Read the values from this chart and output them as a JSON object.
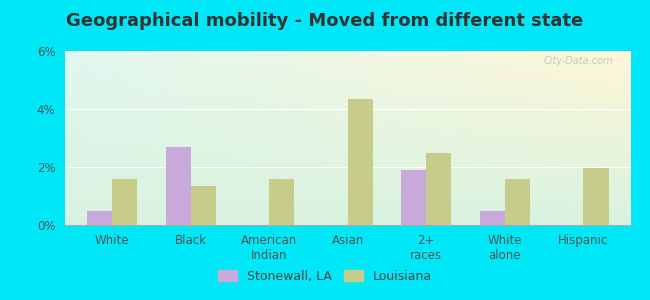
{
  "title": "Geographical mobility - Moved from different state",
  "categories": [
    "White",
    "Black",
    "American\nIndian",
    "Asian",
    "2+\nraces",
    "White\nalone",
    "Hispanic"
  ],
  "stonewall_values": [
    0.5,
    2.7,
    0.0,
    0.0,
    1.9,
    0.5,
    0.0
  ],
  "louisiana_values": [
    1.6,
    1.35,
    1.6,
    4.35,
    2.5,
    1.6,
    1.95
  ],
  "stonewall_color": "#c9a8dc",
  "louisiana_color": "#c8cc8a",
  "ylim": [
    0,
    6
  ],
  "yticks": [
    0,
    2,
    4,
    6
  ],
  "ytick_labels": [
    "0%",
    "2%",
    "4%",
    "6%"
  ],
  "bar_width": 0.32,
  "grad_top_left": "#e0f5f0",
  "grad_top_right": "#f0f8f0",
  "grad_bottom": "#d8f0e0",
  "outer_bg": "#00e8f8",
  "legend_stonewall": "Stonewall, LA",
  "legend_louisiana": "Louisiana",
  "title_fontsize": 13,
  "tick_fontsize": 8.5,
  "legend_fontsize": 9,
  "watermark": "City-Data.com"
}
